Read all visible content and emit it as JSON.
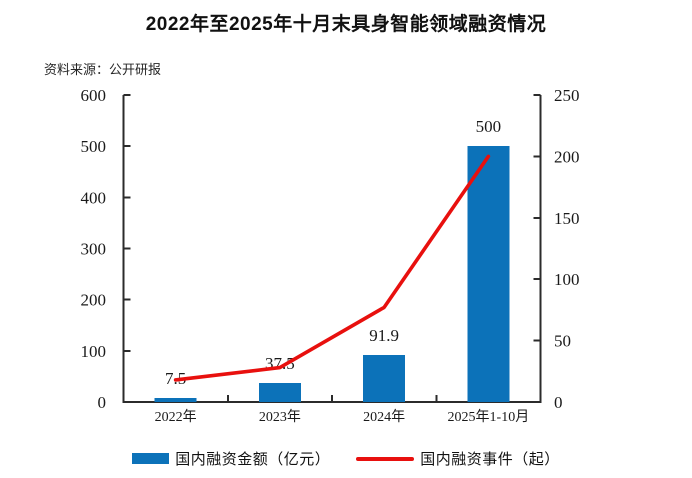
{
  "title": "2022年至2025年十月末具身智能领域融资情况",
  "source": "资料来源：公开研报",
  "colors": {
    "bar": "#0C72B9",
    "line": "#E8100E",
    "axis": "#2B2B2B",
    "text": "#1A1A1A",
    "background": "#FFFFFF"
  },
  "legend": [
    {
      "label": "国内融资金额（亿元）",
      "marker": "bar-swatch"
    },
    {
      "label": "国内融资事件（起）",
      "marker": "line-swatch"
    }
  ],
  "chart_data": {
    "type": "bar",
    "subtype": "combo-bar-line-dual-axis",
    "title": "2022年至2025年十月末具身智能领域融资情况",
    "categories": [
      "2022年",
      "2023年",
      "2024年",
      "2025年1-10月"
    ],
    "series": [
      {
        "name": "国内融资金额（亿元）",
        "type": "bar",
        "axis": "left",
        "values": [
          7.5,
          37.5,
          91.9,
          500
        ],
        "data_labels": [
          "7.5",
          "37.5",
          "91.9",
          "500"
        ]
      },
      {
        "name": "国内融资事件（起）",
        "type": "line",
        "axis": "right",
        "values": [
          18,
          28,
          77,
          200
        ],
        "values_estimated": true,
        "data_labels": []
      }
    ],
    "left_axis": {
      "min": 0,
      "max": 600,
      "step": 100,
      "ticks": [
        "0",
        "100",
        "200",
        "300",
        "400",
        "500",
        "600"
      ]
    },
    "right_axis": {
      "min": 0,
      "max": 250,
      "step": 50,
      "ticks": [
        "0",
        "50",
        "100",
        "150",
        "200",
        "250"
      ]
    },
    "xlabel": "",
    "ylabel": "",
    "grid": false,
    "legend_position": "bottom"
  }
}
